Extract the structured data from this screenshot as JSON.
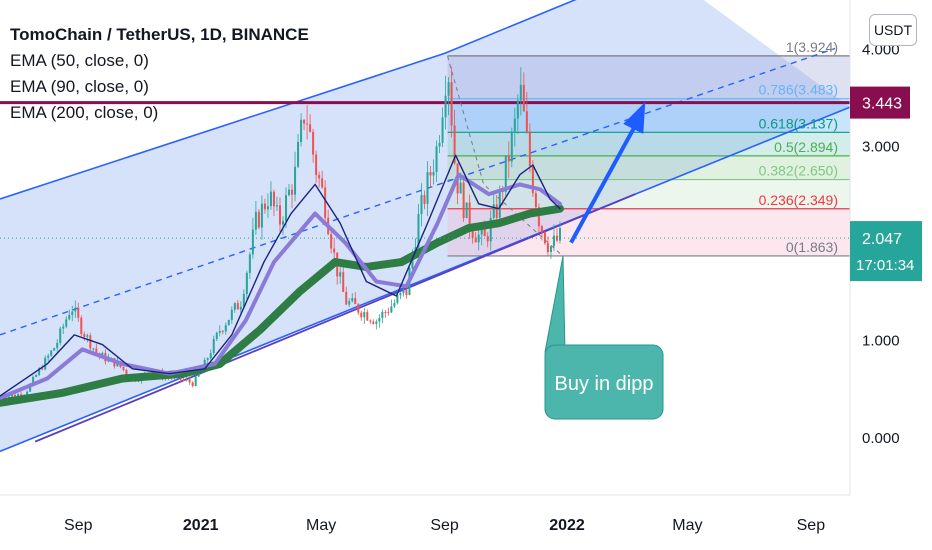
{
  "header": {
    "title": "TomoChain / TetherUS, 1D, BINANCE",
    "indicators": [
      "EMA (50, close, 0)",
      "EMA (90, close, 0)",
      "EMA (200, close, 0)"
    ],
    "currency": "USDT"
  },
  "colors": {
    "channel_line": "#2962ff",
    "channel_fill": "#bbcdf7",
    "ema50": "#1a237e",
    "ema90": "#8b7ad8",
    "ema200": "#2e7d45",
    "hline": "#880e4f",
    "candle_up": "#26a69a",
    "candle_down": "#ef5350",
    "callout": "#4db6ac",
    "arrow": "#1e5cff",
    "last_price_bg": "#26a69a"
  },
  "chart_data": {
    "type": "line",
    "y_axis": {
      "ticks": [
        {
          "value": 0,
          "label": "0.000"
        },
        {
          "value": 1,
          "label": "1.000"
        },
        {
          "value": 2,
          "label": "2.000"
        },
        {
          "value": 3,
          "label": "3.000"
        },
        {
          "value": 4,
          "label": "4.000"
        }
      ],
      "range": [
        -0.6,
        4.5
      ]
    },
    "x_axis": {
      "ticks": [
        {
          "date": "2020-09-01",
          "label": "Sep",
          "bold": false
        },
        {
          "date": "2021-01-01",
          "label": "2021",
          "bold": true
        },
        {
          "date": "2021-05-01",
          "label": "May",
          "bold": false
        },
        {
          "date": "2021-09-01",
          "label": "Sep",
          "bold": false
        },
        {
          "date": "2022-01-01",
          "label": "2022",
          "bold": true
        },
        {
          "date": "2022-05-01",
          "label": "May",
          "bold": false
        },
        {
          "date": "2022-09-01",
          "label": "Sep",
          "bold": false
        }
      ],
      "range": [
        "2020-06-15",
        "2022-10-10"
      ]
    },
    "price_series": [
      [
        "2020-06-15",
        0.4
      ],
      [
        "2020-07-10",
        0.45
      ],
      [
        "2020-07-25",
        0.7
      ],
      [
        "2020-08-10",
        0.95
      ],
      [
        "2020-08-25",
        1.35
      ],
      [
        "2020-09-05",
        1.1
      ],
      [
        "2020-09-20",
        0.85
      ],
      [
        "2020-10-10",
        0.75
      ],
      [
        "2020-10-25",
        0.6
      ],
      [
        "2020-11-15",
        0.65
      ],
      [
        "2020-12-10",
        0.6
      ],
      [
        "2020-12-25",
        0.55
      ],
      [
        "2021-01-05",
        0.75
      ],
      [
        "2021-01-20",
        1.1
      ],
      [
        "2021-02-10",
        1.4
      ],
      [
        "2021-02-25",
        2.2
      ],
      [
        "2021-03-10",
        2.5
      ],
      [
        "2021-03-20",
        2.2
      ],
      [
        "2021-04-05",
        2.7
      ],
      [
        "2021-04-15",
        3.4
      ],
      [
        "2021-04-25",
        2.8
      ],
      [
        "2021-05-05",
        2.4
      ],
      [
        "2021-05-15",
        1.8
      ],
      [
        "2021-05-25",
        1.4
      ],
      [
        "2021-06-10",
        1.3
      ],
      [
        "2021-06-25",
        1.2
      ],
      [
        "2021-07-10",
        1.35
      ],
      [
        "2021-07-25",
        1.5
      ],
      [
        "2021-08-05",
        2.2
      ],
      [
        "2021-08-15",
        2.6
      ],
      [
        "2021-08-25",
        3.0
      ],
      [
        "2021-09-04",
        3.92
      ],
      [
        "2021-09-12",
        2.7
      ],
      [
        "2021-09-25",
        2.2
      ],
      [
        "2021-10-10",
        2.0
      ],
      [
        "2021-10-25",
        2.4
      ],
      [
        "2021-11-10",
        3.2
      ],
      [
        "2021-11-15",
        3.6
      ],
      [
        "2021-11-25",
        2.8
      ],
      [
        "2021-12-05",
        2.2
      ],
      [
        "2021-12-15",
        1.95
      ],
      [
        "2021-12-25",
        2.05
      ]
    ],
    "ema50": [
      [
        "2020-06-15",
        0.42
      ],
      [
        "2020-08-01",
        0.75
      ],
      [
        "2020-08-28",
        1.05
      ],
      [
        "2020-09-25",
        0.95
      ],
      [
        "2020-10-25",
        0.7
      ],
      [
        "2020-12-01",
        0.65
      ],
      [
        "2021-01-05",
        0.7
      ],
      [
        "2021-02-01",
        1.05
      ],
      [
        "2021-03-05",
        1.8
      ],
      [
        "2021-04-01",
        2.3
      ],
      [
        "2021-04-25",
        2.6
      ],
      [
        "2021-05-20",
        2.2
      ],
      [
        "2021-06-15",
        1.6
      ],
      [
        "2021-07-15",
        1.45
      ],
      [
        "2021-08-15",
        2.2
      ],
      [
        "2021-09-12",
        2.9
      ],
      [
        "2021-10-05",
        2.4
      ],
      [
        "2021-10-25",
        2.35
      ],
      [
        "2021-11-15",
        2.7
      ],
      [
        "2021-11-28",
        2.8
      ],
      [
        "2021-12-15",
        2.45
      ],
      [
        "2021-12-25",
        2.35
      ]
    ],
    "ema90": [
      [
        "2020-06-15",
        0.4
      ],
      [
        "2020-08-01",
        0.6
      ],
      [
        "2020-09-05",
        0.9
      ],
      [
        "2020-10-15",
        0.75
      ],
      [
        "2020-12-01",
        0.65
      ],
      [
        "2021-01-15",
        0.75
      ],
      [
        "2021-02-15",
        1.2
      ],
      [
        "2021-03-15",
        1.8
      ],
      [
        "2021-04-25",
        2.3
      ],
      [
        "2021-05-25",
        2.0
      ],
      [
        "2021-06-25",
        1.6
      ],
      [
        "2021-07-25",
        1.55
      ],
      [
        "2021-08-25",
        2.2
      ],
      [
        "2021-09-15",
        2.7
      ],
      [
        "2021-10-15",
        2.5
      ],
      [
        "2021-11-15",
        2.6
      ],
      [
        "2021-12-05",
        2.55
      ],
      [
        "2021-12-25",
        2.4
      ]
    ],
    "ema200": [
      [
        "2020-06-15",
        0.35
      ],
      [
        "2020-08-15",
        0.45
      ],
      [
        "2020-10-15",
        0.6
      ],
      [
        "2020-12-15",
        0.65
      ],
      [
        "2021-01-20",
        0.75
      ],
      [
        "2021-03-01",
        1.1
      ],
      [
        "2021-04-10",
        1.5
      ],
      [
        "2021-05-15",
        1.8
      ],
      [
        "2021-06-15",
        1.75
      ],
      [
        "2021-07-20",
        1.8
      ],
      [
        "2021-08-25",
        2.0
      ],
      [
        "2021-09-25",
        2.15
      ],
      [
        "2021-10-25",
        2.2
      ],
      [
        "2021-11-25",
        2.3
      ],
      [
        "2021-12-25",
        2.35
      ]
    ],
    "channel": {
      "lower": [
        [
          "2020-06-15",
          -0.15
        ],
        [
          "2022-03-10",
          2.5
        ]
      ],
      "upper": [
        [
          "2020-06-15",
          2.45
        ],
        [
          "2021-09-01",
          3.95
        ],
        [
          "2022-04-01",
          4.85
        ]
      ],
      "mid": [
        [
          "2020-06-15",
          1.05
        ],
        [
          "2022-09-25",
          4.0
        ]
      ]
    },
    "horizontal_level": {
      "value": 3.443,
      "label": "3.443",
      "x_start": "2020-06-15"
    },
    "fibonacci": {
      "x_range": [
        "2021-09-04",
        "2022-10-10"
      ],
      "levels": [
        {
          "ratio": "1",
          "price": 3.924,
          "label": "1(3.924)",
          "color": "#787b86"
        },
        {
          "ratio": "0.786",
          "price": 3.483,
          "label": "0.786(3.483)",
          "color": "#64b5f6"
        },
        {
          "ratio": "0.618",
          "price": 3.137,
          "label": "0.618(3.137)",
          "color": "#089981"
        },
        {
          "ratio": "0.5",
          "price": 2.894,
          "label": "0.5(2.894)",
          "color": "#4caf50"
        },
        {
          "ratio": "0.382",
          "price": 2.65,
          "label": "0.382(2.650)",
          "color": "#81c784"
        },
        {
          "ratio": "0.236",
          "price": 2.349,
          "label": "0.236(2.349)",
          "color": "#f23645"
        },
        {
          "ratio": "0",
          "price": 1.863,
          "label": "0(1.863)",
          "color": "#787b86"
        }
      ]
    },
    "arrow": {
      "from": [
        "2022-01-05",
        2.0
      ],
      "to": [
        "2022-03-20",
        3.45
      ]
    },
    "callout": {
      "text": "Buy in dipp",
      "anchor": [
        "2021-12-28",
        1.863
      ]
    },
    "last_price": {
      "value": 2.047,
      "label": "2.047",
      "countdown": "17:01:34"
    }
  }
}
